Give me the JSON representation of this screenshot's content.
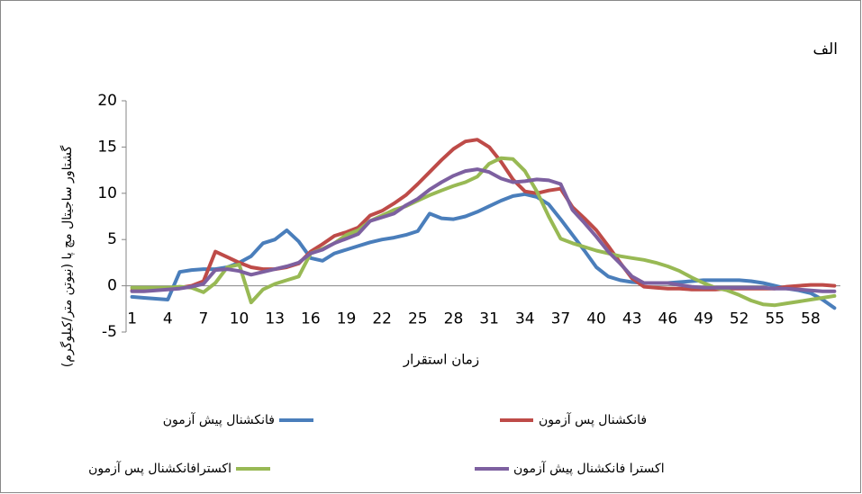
{
  "chart_data": {
    "type": "line",
    "title": "الف",
    "y_label": "گشتاور ساجیتال مچ پا (نیوتن متر/کیلوگرم)",
    "x_label": "زمان استقرار",
    "categories": [
      "1",
      null,
      null,
      "4",
      null,
      null,
      "7",
      null,
      null,
      "10",
      null,
      null,
      "13",
      null,
      null,
      "16",
      null,
      null,
      "19",
      null,
      null,
      "22",
      null,
      null,
      "25",
      null,
      null,
      "28",
      null,
      null,
      "31",
      null,
      null,
      "34",
      null,
      null,
      "37",
      null,
      null,
      "40",
      null,
      null,
      "43",
      null,
      null,
      "46",
      null,
      null,
      "49",
      null,
      null,
      "52",
      null,
      null,
      "55",
      null,
      null,
      "58",
      null,
      null
    ],
    "ylim": [
      -5,
      20
    ],
    "yticks": [
      -5,
      0,
      5,
      10,
      15,
      20
    ],
    "series": [
      {
        "name": "فانکشنال پیش آزمون",
        "color": "#4a7ebb",
        "values": [
          -1.2,
          -1.3,
          -1.4,
          -1.5,
          1.5,
          1.7,
          1.8,
          1.8,
          2,
          2.5,
          3.2,
          4.6,
          5,
          6,
          4.8,
          3,
          2.7,
          3.5,
          3.9,
          4.3,
          4.7,
          5,
          5.2,
          5.5,
          5.9,
          7.8,
          7.3,
          7.2,
          7.5,
          8,
          8.6,
          9.2,
          9.7,
          9.9,
          9.6,
          8.8,
          7.2,
          5.5,
          3.8,
          2,
          1,
          0.6,
          0.4,
          0.3,
          0.3,
          0.3,
          0.4,
          0.5,
          0.6,
          0.6,
          0.6,
          0.6,
          0.5,
          0.3,
          0,
          -0.3,
          -0.5,
          -0.8,
          -1.5,
          -2.4
        ]
      },
      {
        "name": "فانکشنال پس آزمون",
        "color": "#be4b48",
        "values": [
          -0.5,
          -0.5,
          -0.4,
          -0.3,
          -0.2,
          0,
          0.5,
          3.7,
          3.1,
          2.5,
          2,
          1.8,
          1.8,
          2,
          2.4,
          3.7,
          4.5,
          5.4,
          5.8,
          6.3,
          7.6,
          8.1,
          8.9,
          9.8,
          11,
          12.3,
          13.6,
          14.8,
          15.6,
          15.8,
          15,
          13.4,
          11.5,
          10.2,
          10,
          10.3,
          10.5,
          8.5,
          7.3,
          6,
          4.3,
          2.5,
          0.8,
          -0.1,
          -0.2,
          -0.3,
          -0.3,
          -0.4,
          -0.4,
          -0.4,
          -0.3,
          -0.3,
          -0.3,
          -0.3,
          -0.3,
          -0.1,
          0,
          0.1,
          0.1,
          0
        ]
      },
      {
        "name": "اکسترافانکشنال پس آزمون",
        "color": "#98b954",
        "values": [
          -0.2,
          -0.2,
          -0.2,
          -0.2,
          -0.1,
          -0.2,
          -0.7,
          0.3,
          2,
          2.3,
          -1.8,
          -0.4,
          0.2,
          0.6,
          1,
          3.5,
          4,
          4.6,
          5.5,
          6,
          7,
          7.6,
          8.2,
          8.6,
          9.2,
          9.8,
          10.3,
          10.8,
          11.2,
          11.8,
          13.2,
          13.8,
          13.7,
          12.4,
          10.2,
          7.5,
          5.1,
          4.6,
          4.2,
          3.8,
          3.5,
          3.2,
          3,
          2.8,
          2.5,
          2.1,
          1.6,
          0.9,
          0.3,
          -0.2,
          -0.5,
          -1,
          -1.6,
          -2,
          -2.1,
          -1.9,
          -1.7,
          -1.5,
          -1.3,
          -1.1
        ]
      },
      {
        "name": "اکسترا فانکشنال پیش آزمون",
        "color": "#7d60a0",
        "values": [
          -0.6,
          -0.6,
          -0.5,
          -0.4,
          -0.3,
          -0.1,
          0.2,
          1.7,
          1.8,
          1.6,
          1.2,
          1.5,
          1.8,
          2.1,
          2.5,
          3.5,
          3.9,
          4.6,
          5.1,
          5.6,
          7,
          7.4,
          7.8,
          8.7,
          9.4,
          10.4,
          11.2,
          11.9,
          12.4,
          12.6,
          12.3,
          11.6,
          11.2,
          11.3,
          11.5,
          11.4,
          11,
          8.2,
          6.8,
          5.3,
          3.7,
          2.4,
          1,
          0.3,
          0.3,
          0.3,
          0.1,
          -0.1,
          -0.2,
          -0.2,
          -0.2,
          -0.2,
          -0.2,
          -0.2,
          -0.3,
          -0.3,
          -0.4,
          -0.5,
          -0.6,
          -0.6
        ]
      }
    ]
  }
}
